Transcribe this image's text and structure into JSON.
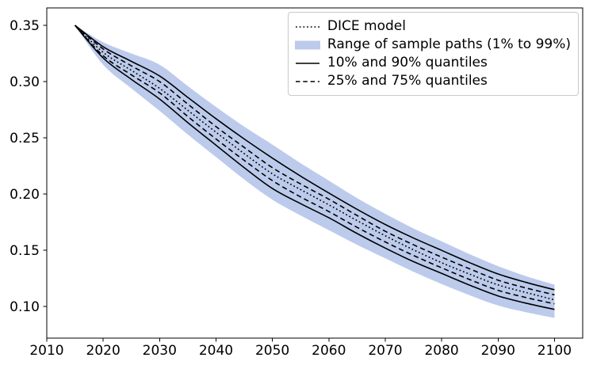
{
  "figure": {
    "background": "#ffffff"
  },
  "legend": {
    "entries": [
      {
        "label": "DICE model",
        "glyph": "dotted-line"
      },
      {
        "label": "Range of sample paths (1% to 99%)",
        "glyph": "patch"
      },
      {
        "label": "10% and 90% quantiles",
        "glyph": "solid-line"
      },
      {
        "label": "25% and 75% quantiles",
        "glyph": "dashed-line"
      }
    ]
  },
  "colors": {
    "line": "#000000",
    "band": "#bccbeb",
    "axis": "#000000",
    "tick_label": "#000000",
    "legend_border": "#c9c9c9"
  },
  "chart_data": {
    "type": "line",
    "title": "",
    "xlabel": "",
    "ylabel": "",
    "grid": false,
    "legend_position": "upper-right",
    "xlim": [
      2010,
      2105
    ],
    "ylim": [
      0.072,
      0.3655
    ],
    "x_ticks": [
      2010,
      2020,
      2030,
      2040,
      2050,
      2060,
      2070,
      2080,
      2090,
      2100
    ],
    "y_ticks": [
      {
        "value": 0.1,
        "label": "0.10"
      },
      {
        "value": 0.15,
        "label": "0.15"
      },
      {
        "value": 0.2,
        "label": "0.20"
      },
      {
        "value": 0.25,
        "label": "0.25"
      },
      {
        "value": 0.3,
        "label": "0.30"
      },
      {
        "value": 0.35,
        "label": "0.35"
      }
    ],
    "x": [
      2015,
      2020,
      2025,
      2030,
      2035,
      2040,
      2045,
      2050,
      2055,
      2060,
      2065,
      2070,
      2075,
      2080,
      2085,
      2090,
      2095,
      2100
    ],
    "band": {
      "name": "Range of sample paths (1% to 99%)",
      "color": "#bccbeb",
      "upper": [
        0.35,
        0.335,
        0.325,
        0.315,
        0.296,
        0.2775,
        0.26,
        0.244,
        0.2275,
        0.212,
        0.1965,
        0.1825,
        0.1695,
        0.158,
        0.1465,
        0.136,
        0.127,
        0.1195
      ],
      "lower": [
        0.35,
        0.315,
        0.294,
        0.274,
        0.253,
        0.233,
        0.213,
        0.195,
        0.181,
        0.168,
        0.155,
        0.143,
        0.131,
        0.12,
        0.11,
        0.101,
        0.095,
        0.09
      ]
    },
    "series": [
      {
        "name": "90% quantile",
        "legend_group": "10% and 90% quantiles",
        "style": "solid",
        "values": [
          0.35,
          0.331,
          0.318,
          0.305,
          0.286,
          0.267,
          0.249,
          0.232,
          0.216,
          0.201,
          0.1865,
          0.173,
          0.161,
          0.15,
          0.139,
          0.129,
          0.1215,
          0.115
        ]
      },
      {
        "name": "75% quantile",
        "legend_group": "25% and 75% quantiles",
        "style": "dashed",
        "values": [
          0.35,
          0.329,
          0.314,
          0.3,
          0.28,
          0.26,
          0.2415,
          0.2235,
          0.209,
          0.1955,
          0.181,
          0.167,
          0.155,
          0.144,
          0.1335,
          0.1235,
          0.1165,
          0.1105
        ]
      },
      {
        "name": "DICE model",
        "legend_group": "DICE model",
        "style": "dotted",
        "values": [
          0.35,
          0.326,
          0.31,
          0.294,
          0.2745,
          0.255,
          0.236,
          0.218,
          0.204,
          0.1905,
          0.1765,
          0.163,
          0.1505,
          0.139,
          0.1288,
          0.1193,
          0.1125,
          0.106
        ]
      },
      {
        "name": "25% quantile",
        "legend_group": "25% and 75% quantiles",
        "style": "dashed",
        "values": [
          0.35,
          0.323,
          0.306,
          0.29,
          0.269,
          0.249,
          0.23,
          0.212,
          0.1975,
          0.1845,
          0.1705,
          0.1575,
          0.1455,
          0.1345,
          0.124,
          0.1145,
          0.108,
          0.1025
        ]
      },
      {
        "name": "10% quantile",
        "legend_group": "10% and 90% quantiles",
        "style": "solid",
        "values": [
          0.35,
          0.321,
          0.302,
          0.2845,
          0.2635,
          0.2435,
          0.2235,
          0.205,
          0.1915,
          0.179,
          0.165,
          0.152,
          0.14,
          0.1295,
          0.119,
          0.1095,
          0.103,
          0.0975
        ]
      }
    ]
  }
}
